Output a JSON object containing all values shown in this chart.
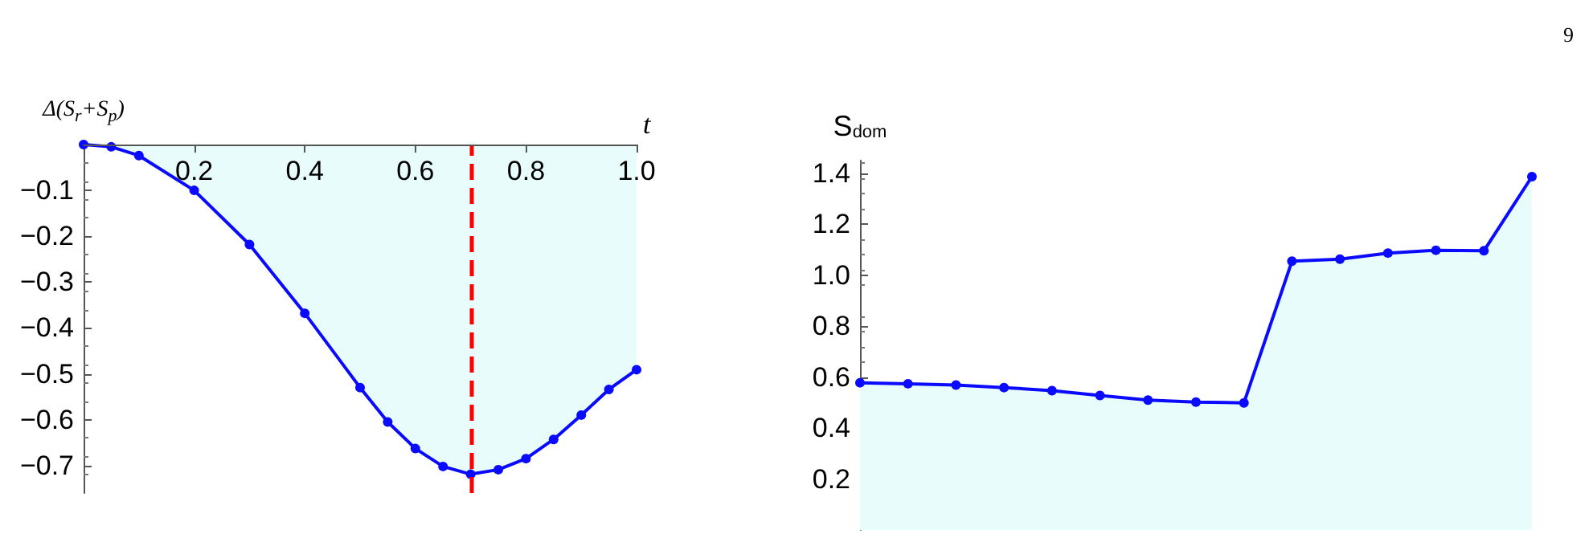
{
  "chart_data": [
    {
      "type": "area",
      "xlabel": "t",
      "ylabel": "Δ(S$_{r}$+S$_{p}$)",
      "x": [
        0,
        0.05,
        0.1,
        0.2,
        0.3,
        0.4,
        0.5,
        0.55,
        0.6,
        0.65,
        0.7,
        0.75,
        0.8,
        0.85,
        0.9,
        0.95,
        1.0
      ],
      "series": [
        {
          "color": "#0a0aff",
          "values": [
            0,
            -0.005,
            -0.024,
            -0.1,
            -0.218,
            -0.368,
            -0.53,
            -0.605,
            -0.663,
            -0.702,
            -0.719,
            -0.709,
            -0.685,
            -0.643,
            -0.59,
            -0.534,
            -0.491
          ]
        }
      ],
      "xlim": [
        0,
        1
      ],
      "xticks": [
        0.2,
        0.4,
        0.6,
        0.8,
        {
          "value": 1,
          "label": "1.0"
        }
      ],
      "ylim": [
        -0.76,
        0
      ],
      "yticks": [
        {
          "value": -0.1,
          "label": "−0.1"
        },
        {
          "value": -0.2,
          "label": "−0.2"
        },
        {
          "value": -0.3,
          "label": "−0.3"
        },
        {
          "value": -0.4,
          "label": "−0.4"
        },
        {
          "value": -0.5,
          "label": "−0.5"
        },
        {
          "value": -0.6,
          "label": "−0.6"
        },
        {
          "value": -0.7,
          "label": "−0.7"
        }
      ],
      "ref_lines": [
        {
          "axis": "x",
          "value": 0.7,
          "color": "#ff0000",
          "line_style": "dashed"
        }
      ],
      "marker": "circle",
      "grid": false
    },
    {
      "type": "area",
      "ylabel": "S$_{dom}$",
      "categories": [
        null,
        null,
        null,
        null,
        null,
        null,
        null,
        null,
        null,
        null,
        null,
        null,
        null,
        null,
        null
      ],
      "series": [
        {
          "color": "#0a0aff",
          "values": [
            0.578,
            0.574,
            0.569,
            0.559,
            0.547,
            0.528,
            0.51,
            0.502,
            0.499,
            1.055,
            1.063,
            1.087,
            1.098,
            1.096,
            1.387
          ]
        }
      ],
      "ylim": [
        0,
        1.45
      ],
      "yticks": [
        0.2,
        0.4,
        0.6,
        0.8,
        {
          "value": 1,
          "label": "1.0"
        },
        1.2,
        1.4
      ],
      "tick_labels": "y",
      "marker": "circle",
      "grid": false,
      "annotations": [
        "9"
      ]
    }
  ]
}
